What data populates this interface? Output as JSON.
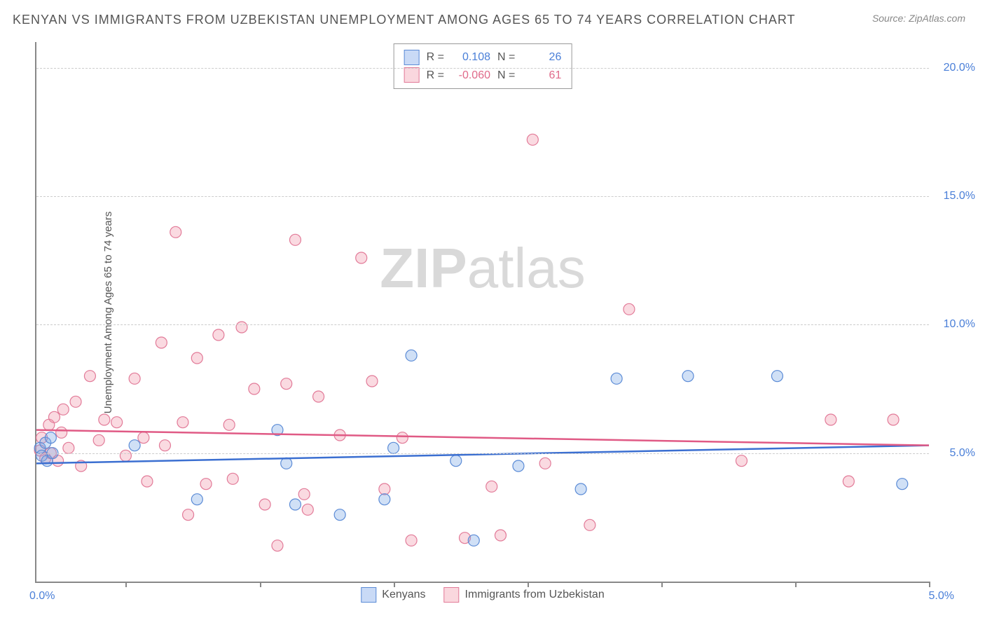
{
  "title": "KENYAN VS IMMIGRANTS FROM UZBEKISTAN UNEMPLOYMENT AMONG AGES 65 TO 74 YEARS CORRELATION CHART",
  "source": "Source: ZipAtlas.com",
  "ylabel": "Unemployment Among Ages 65 to 74 years",
  "watermark_zip": "ZIP",
  "watermark_atlas": "atlas",
  "chart": {
    "type": "scatter",
    "xlim": [
      0,
      5
    ],
    "ylim": [
      0,
      21
    ],
    "yticks": [
      5,
      10,
      15,
      20
    ],
    "ytick_labels": [
      "5.0%",
      "10.0%",
      "15.0%",
      "20.0%"
    ],
    "xticks": [
      0.5,
      1.25,
      2.0,
      2.75,
      3.5,
      4.25,
      5.0
    ],
    "xaxis_left_label": "0.0%",
    "xaxis_right_label": "5.0%",
    "grid_color": "#cccccc",
    "axis_color": "#888888",
    "background_color": "#ffffff",
    "series": [
      {
        "name": "Kenyans",
        "color_fill": "rgba(120,165,230,0.35)",
        "color_stroke": "#5b8bd6",
        "R": "0.108",
        "N": "26",
        "trend": {
          "x1": 0,
          "y1": 4.6,
          "x2": 5.0,
          "y2": 5.3,
          "stroke": "#3b6fd1",
          "width": 2.5
        },
        "points": [
          [
            0.02,
            5.2
          ],
          [
            0.03,
            4.9
          ],
          [
            0.05,
            5.4
          ],
          [
            0.06,
            4.7
          ],
          [
            0.08,
            5.6
          ],
          [
            0.09,
            5.0
          ],
          [
            0.55,
            5.3
          ],
          [
            0.9,
            3.2
          ],
          [
            1.35,
            5.9
          ],
          [
            1.4,
            4.6
          ],
          [
            1.45,
            3.0
          ],
          [
            1.7,
            2.6
          ],
          [
            1.95,
            3.2
          ],
          [
            2.0,
            5.2
          ],
          [
            2.1,
            8.8
          ],
          [
            2.35,
            4.7
          ],
          [
            2.45,
            1.6
          ],
          [
            2.7,
            4.5
          ],
          [
            3.05,
            3.6
          ],
          [
            3.25,
            7.9
          ],
          [
            3.65,
            8.0
          ],
          [
            4.15,
            8.0
          ],
          [
            4.85,
            3.8
          ]
        ]
      },
      {
        "name": "Immigrants from Uzbekistan",
        "color_fill": "rgba(240,150,170,0.35)",
        "color_stroke": "#e27a98",
        "R": "-0.060",
        "N": "61",
        "trend": {
          "x1": 0,
          "y1": 5.9,
          "x2": 5.0,
          "y2": 5.3,
          "stroke": "#e05a85",
          "width": 2.5
        },
        "points": [
          [
            0.02,
            5.1
          ],
          [
            0.03,
            5.6
          ],
          [
            0.05,
            4.8
          ],
          [
            0.07,
            6.1
          ],
          [
            0.08,
            5.0
          ],
          [
            0.1,
            6.4
          ],
          [
            0.12,
            4.7
          ],
          [
            0.14,
            5.8
          ],
          [
            0.15,
            6.7
          ],
          [
            0.18,
            5.2
          ],
          [
            0.22,
            7.0
          ],
          [
            0.25,
            4.5
          ],
          [
            0.3,
            8.0
          ],
          [
            0.35,
            5.5
          ],
          [
            0.38,
            6.3
          ],
          [
            0.45,
            6.2
          ],
          [
            0.5,
            4.9
          ],
          [
            0.55,
            7.9
          ],
          [
            0.6,
            5.6
          ],
          [
            0.62,
            3.9
          ],
          [
            0.7,
            9.3
          ],
          [
            0.72,
            5.3
          ],
          [
            0.78,
            13.6
          ],
          [
            0.82,
            6.2
          ],
          [
            0.85,
            2.6
          ],
          [
            0.9,
            8.7
          ],
          [
            0.95,
            3.8
          ],
          [
            1.02,
            9.6
          ],
          [
            1.08,
            6.1
          ],
          [
            1.1,
            4.0
          ],
          [
            1.15,
            9.9
          ],
          [
            1.22,
            7.5
          ],
          [
            1.28,
            3.0
          ],
          [
            1.35,
            1.4
          ],
          [
            1.4,
            7.7
          ],
          [
            1.45,
            13.3
          ],
          [
            1.5,
            3.4
          ],
          [
            1.52,
            2.8
          ],
          [
            1.58,
            7.2
          ],
          [
            1.7,
            5.7
          ],
          [
            1.82,
            12.6
          ],
          [
            1.88,
            7.8
          ],
          [
            1.95,
            3.6
          ],
          [
            2.05,
            5.6
          ],
          [
            2.1,
            1.6
          ],
          [
            2.4,
            1.7
          ],
          [
            2.55,
            3.7
          ],
          [
            2.6,
            1.8
          ],
          [
            2.78,
            17.2
          ],
          [
            2.85,
            4.6
          ],
          [
            3.1,
            2.2
          ],
          [
            3.32,
            10.6
          ],
          [
            3.95,
            4.7
          ],
          [
            4.45,
            6.3
          ],
          [
            4.55,
            3.9
          ],
          [
            4.8,
            6.3
          ]
        ]
      }
    ],
    "marker_radius": 8
  },
  "stats_box": {
    "r_label": "R =",
    "n_label": "N ="
  },
  "legend": {
    "a": "Kenyans",
    "b": "Immigrants from Uzbekistan"
  }
}
